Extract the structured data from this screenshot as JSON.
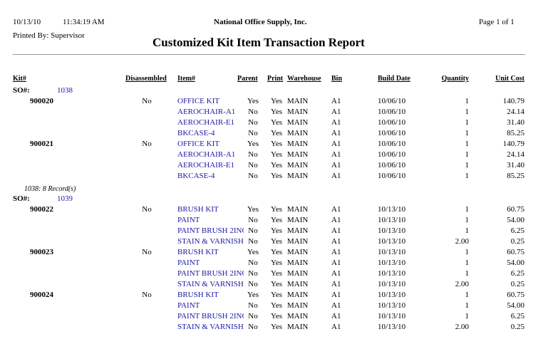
{
  "header": {
    "date": "10/13/10",
    "time": "11:34:19 AM",
    "company": "National Office Supply, Inc.",
    "page": "Page 1 of 1",
    "printed_by": "Printed By: Supervisor",
    "title": "Customized Kit Item Transaction Report"
  },
  "columns": [
    "Kit#",
    "Disassembled",
    "Item#",
    "Parent",
    "Print",
    "Warehouse",
    "Bin",
    "Build Date",
    "Quantity",
    "Unit Cost"
  ],
  "groups": [
    {
      "label": "SO#:",
      "so": "1038",
      "footer": "1038: 8 Record(s)",
      "kits": [
        {
          "kit": "900020",
          "disassembled": "No",
          "items": [
            [
              "OFFICE KIT",
              "Yes",
              "Yes",
              "MAIN",
              "A1",
              "10/06/10",
              "1",
              "140.79"
            ],
            [
              "AEROCHAIR-A1",
              "No",
              "Yes",
              "MAIN",
              "A1",
              "10/06/10",
              "1",
              "24.14"
            ],
            [
              "AEROCHAIR-E1",
              "No",
              "Yes",
              "MAIN",
              "A1",
              "10/06/10",
              "1",
              "31.40"
            ],
            [
              "BKCASE-4",
              "No",
              "Yes",
              "MAIN",
              "A1",
              "10/06/10",
              "1",
              "85.25"
            ]
          ]
        },
        {
          "kit": "900021",
          "disassembled": "No",
          "items": [
            [
              "OFFICE KIT",
              "Yes",
              "Yes",
              "MAIN",
              "A1",
              "10/06/10",
              "1",
              "140.79"
            ],
            [
              "AEROCHAIR-A1",
              "No",
              "Yes",
              "MAIN",
              "A1",
              "10/06/10",
              "1",
              "24.14"
            ],
            [
              "AEROCHAIR-E1",
              "No",
              "Yes",
              "MAIN",
              "A1",
              "10/06/10",
              "1",
              "31.40"
            ],
            [
              "BKCASE-4",
              "No",
              "Yes",
              "MAIN",
              "A1",
              "10/06/10",
              "1",
              "85.25"
            ]
          ]
        }
      ]
    },
    {
      "label": "SO#:",
      "so": "1039",
      "kits": [
        {
          "kit": "900022",
          "disassembled": "No",
          "items": [
            [
              "BRUSH KIT",
              "Yes",
              "Yes",
              "MAIN",
              "A1",
              "10/13/10",
              "1",
              "60.75"
            ],
            [
              "PAINT",
              "No",
              "Yes",
              "MAIN",
              "A1",
              "10/13/10",
              "1",
              "54.00"
            ],
            [
              "PAINT BRUSH 2INC",
              "No",
              "Yes",
              "MAIN",
              "A1",
              "10/13/10",
              "1",
              "6.25"
            ],
            [
              "STAIN & VARNISH",
              "No",
              "Yes",
              "MAIN",
              "A1",
              "10/13/10",
              "2.00",
              "0.25"
            ]
          ]
        },
        {
          "kit": "900023",
          "disassembled": "No",
          "items": [
            [
              "BRUSH KIT",
              "Yes",
              "Yes",
              "MAIN",
              "A1",
              "10/13/10",
              "1",
              "60.75"
            ],
            [
              "PAINT",
              "No",
              "Yes",
              "MAIN",
              "A1",
              "10/13/10",
              "1",
              "54.00"
            ],
            [
              "PAINT BRUSH 2INC",
              "No",
              "Yes",
              "MAIN",
              "A1",
              "10/13/10",
              "1",
              "6.25"
            ],
            [
              "STAIN & VARNISH",
              "No",
              "Yes",
              "MAIN",
              "A1",
              "10/13/10",
              "2.00",
              "0.25"
            ]
          ]
        },
        {
          "kit": "900024",
          "disassembled": "No",
          "items": [
            [
              "BRUSH KIT",
              "Yes",
              "Yes",
              "MAIN",
              "A1",
              "10/13/10",
              "1",
              "60.75"
            ],
            [
              "PAINT",
              "No",
              "Yes",
              "MAIN",
              "A1",
              "10/13/10",
              "1",
              "54.00"
            ],
            [
              "PAINT BRUSH 2INC",
              "No",
              "Yes",
              "MAIN",
              "A1",
              "10/13/10",
              "1",
              "6.25"
            ],
            [
              "STAIN & VARNISH",
              "No",
              "Yes",
              "MAIN",
              "A1",
              "10/13/10",
              "2.00",
              "0.25"
            ]
          ]
        }
      ]
    }
  ]
}
